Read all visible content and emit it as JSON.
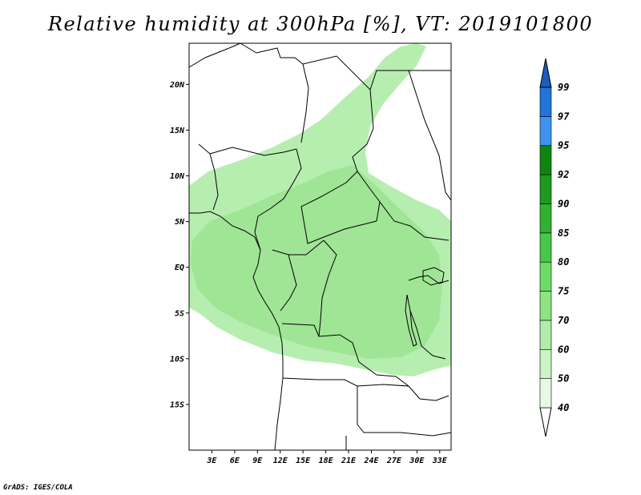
{
  "title": "Relative humidity at 300hPa [%], VT: 2019101800",
  "credit": "GrADS: IGES/COLA",
  "map": {
    "lon_range": [
      0,
      34.5
    ],
    "lat_range": [
      -20,
      24.5
    ],
    "x_ticks": [
      {
        "value": 3,
        "label": "3E"
      },
      {
        "value": 6,
        "label": "6E"
      },
      {
        "value": 9,
        "label": "9E"
      },
      {
        "value": 12,
        "label": "12E"
      },
      {
        "value": 15,
        "label": "15E"
      },
      {
        "value": 18,
        "label": "18E"
      },
      {
        "value": 21,
        "label": "21E"
      },
      {
        "value": 24,
        "label": "24E"
      },
      {
        "value": 27,
        "label": "27E"
      },
      {
        "value": 30,
        "label": "30E"
      },
      {
        "value": 33,
        "label": "33E"
      }
    ],
    "y_ticks": [
      {
        "value": 20,
        "label": "20N"
      },
      {
        "value": 15,
        "label": "15N"
      },
      {
        "value": 10,
        "label": "10N"
      },
      {
        "value": 5,
        "label": "5N"
      },
      {
        "value": 0,
        "label": "EQ"
      },
      {
        "value": -5,
        "label": "5S"
      },
      {
        "value": -10,
        "label": "10S"
      },
      {
        "value": -15,
        "label": "15S"
      }
    ],
    "humidity_region_color": "#b6eeb0",
    "humidity_core_color": "#8fe084"
  },
  "colorbar": {
    "levels": [
      "40",
      "50",
      "60",
      "70",
      "75",
      "80",
      "85",
      "90",
      "92",
      "95",
      "97",
      "99"
    ],
    "colors": [
      "#ffffff",
      "#e6fae3",
      "#caf4c4",
      "#aeedaa",
      "#8fe482",
      "#6cdc66",
      "#48c848",
      "#2fb22f",
      "#1d9a1d",
      "#0e860e",
      "#3f93ef",
      "#2175d9",
      "#1a5cbf"
    ]
  }
}
